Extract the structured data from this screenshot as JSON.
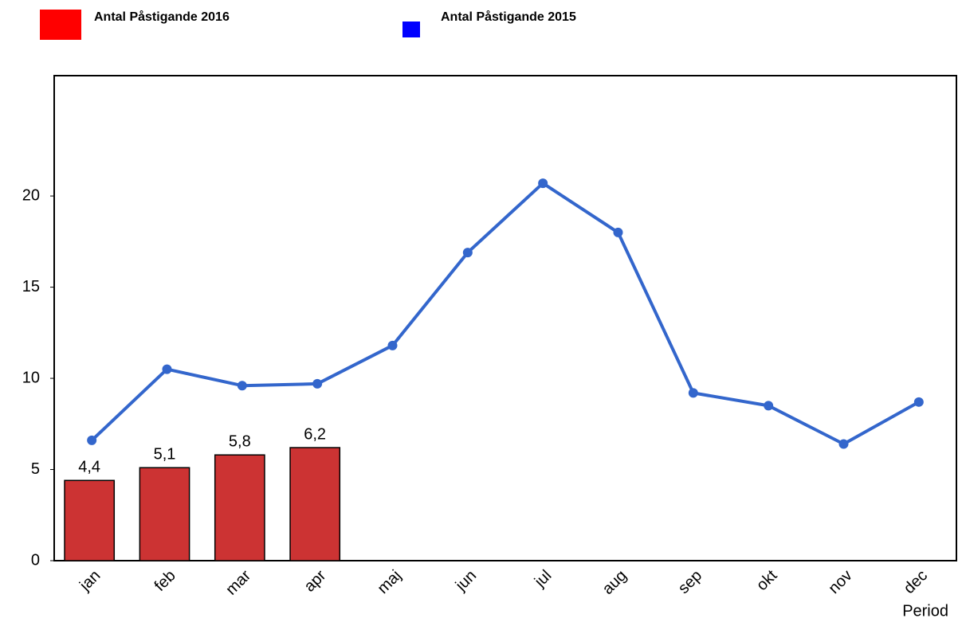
{
  "chart_data": {
    "type": "combo",
    "x_label": "Period",
    "categories": [
      "jan",
      "feb",
      "mar",
      "apr",
      "maj",
      "jun",
      "jul",
      "aug",
      "sep",
      "okt",
      "nov",
      "dec"
    ],
    "series": [
      {
        "name": "Antal Påstigande 2016",
        "type": "bar",
        "color": "#cc3333",
        "legend_color": "#ff0000",
        "values": [
          4.4,
          5.1,
          5.8,
          6.2,
          null,
          null,
          null,
          null,
          null,
          null,
          null,
          null
        ],
        "value_labels": [
          "4,4",
          "5,1",
          "5,8",
          "6,2",
          null,
          null,
          null,
          null,
          null,
          null,
          null,
          null
        ]
      },
      {
        "name": "Antal Påstigande 2015",
        "type": "line",
        "color": "#3366cc",
        "legend_color": "#0000ff",
        "values": [
          6.6,
          10.5,
          9.6,
          9.7,
          11.8,
          16.9,
          20.7,
          18.0,
          9.2,
          8.5,
          6.4,
          8.7
        ]
      }
    ],
    "ylim": [
      0,
      26.6
    ],
    "yticks": [
      0,
      5,
      10,
      15,
      20
    ],
    "grid": false
  }
}
